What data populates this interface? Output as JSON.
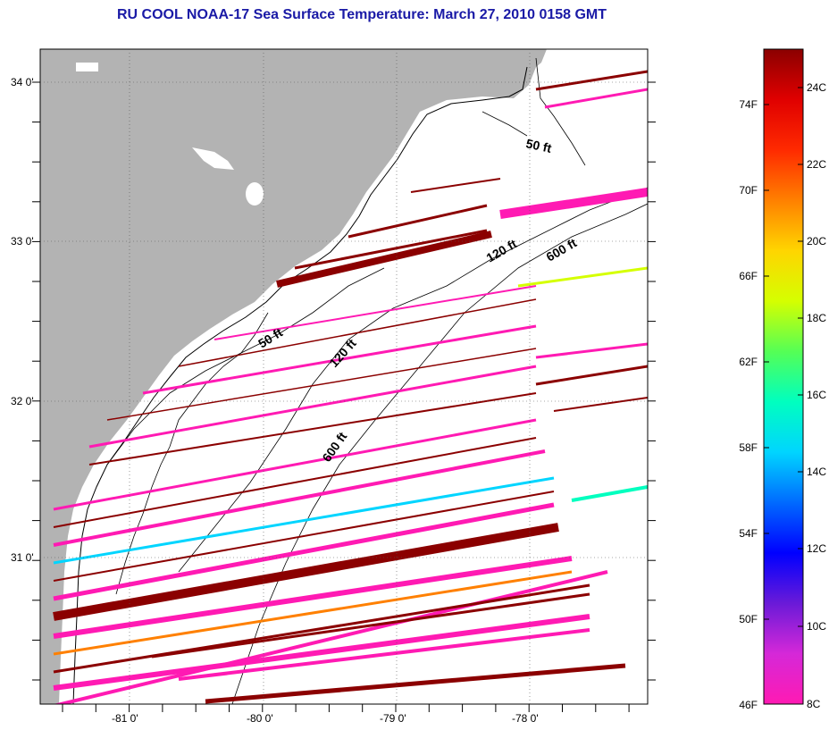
{
  "title": "RU COOL  NOAA-17  Sea Surface Temperature:  March 27, 2010 0158 GMT",
  "map": {
    "lat_labels": [
      "34 0'",
      "33 0'",
      "32 0'",
      "31 0'"
    ],
    "lon_labels": [
      "-81 0'",
      "-80 0'",
      "-79 0'",
      "-78 0'"
    ],
    "contours": [
      "50 ft",
      "120 ft",
      "600 ft",
      "50 ft",
      "120 ft",
      "600 ft"
    ],
    "colors": {
      "land": "#b3b3b3",
      "ocean": "#ffffff",
      "coast": "#000000",
      "grid": "#333333"
    }
  },
  "colorbar": {
    "fahrenheit": [
      "74F",
      "70F",
      "66F",
      "62F",
      "58F",
      "54F",
      "50F",
      "46F"
    ],
    "celsius": [
      "24C",
      "22C",
      "20C",
      "18C",
      "16C",
      "14C",
      "12C",
      "10C",
      "8C"
    ],
    "stops": [
      "#ff1ab3",
      "#d528d8",
      "#6a1ad8",
      "#0000ff",
      "#006aff",
      "#00d5ff",
      "#00ffbf",
      "#55ff55",
      "#d5ff00",
      "#ffd500",
      "#ff8000",
      "#ff2a00",
      "#e00000",
      "#8b0000"
    ]
  }
}
